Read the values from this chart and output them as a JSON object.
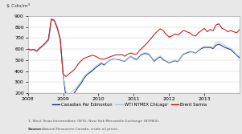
{
  "title": "$ Cdn/m³",
  "ylim": [
    200,
    900
  ],
  "yticks": [
    200,
    300,
    400,
    500,
    600,
    700,
    800,
    900
  ],
  "x_labels": [
    "2008",
    "2009",
    "2010",
    "2011",
    "2012",
    "2013"
  ],
  "legend": [
    "Canadian Par Edmonton",
    "WTI NYMEX Chicago¹",
    "Brent Sarnia"
  ],
  "line_colors": [
    "#1a2e6e",
    "#a8cce0",
    "#cc1111"
  ],
  "footnote1": "1. West Texas Intermediate (WTI); New York Mercantile Exchange (NYMEX).",
  "footnote2": "Source: Natural Resources Canada, crude oil prices.",
  "background_color": "#e8e8e8",
  "plot_bg": "#ffffff",
  "canadian_par": [
    600,
    590,
    595,
    580,
    605,
    625,
    650,
    680,
    870,
    855,
    790,
    690,
    365,
    155,
    150,
    175,
    210,
    250,
    285,
    330,
    365,
    385,
    405,
    430,
    450,
    470,
    455,
    480,
    500,
    510,
    510,
    505,
    495,
    490,
    515,
    535,
    515,
    505,
    535,
    555,
    560,
    555,
    525,
    490,
    515,
    530,
    505,
    490,
    475,
    485,
    495,
    485,
    525,
    555,
    565,
    575,
    575,
    565,
    585,
    605,
    615,
    615,
    615,
    605,
    635,
    645,
    630,
    615,
    605,
    595,
    570,
    545,
    520
  ],
  "wti_nymex": [
    598,
    588,
    592,
    575,
    602,
    622,
    648,
    678,
    872,
    858,
    793,
    693,
    368,
    210,
    195,
    215,
    235,
    268,
    302,
    345,
    375,
    398,
    418,
    442,
    462,
    478,
    462,
    482,
    502,
    512,
    512,
    508,
    498,
    492,
    518,
    538,
    520,
    510,
    540,
    562,
    568,
    562,
    530,
    498,
    522,
    538,
    512,
    495,
    480,
    490,
    500,
    490,
    530,
    560,
    570,
    580,
    578,
    568,
    590,
    612,
    625,
    625,
    625,
    615,
    660,
    668,
    648,
    635,
    618,
    605,
    580,
    552,
    530
  ],
  "brent_sarnia": [
    602,
    592,
    598,
    582,
    610,
    632,
    660,
    690,
    875,
    862,
    796,
    696,
    372,
    350,
    375,
    395,
    420,
    460,
    490,
    515,
    525,
    535,
    545,
    535,
    520,
    510,
    510,
    520,
    530,
    540,
    548,
    548,
    550,
    535,
    555,
    565,
    555,
    555,
    588,
    612,
    640,
    670,
    700,
    735,
    760,
    785,
    770,
    735,
    710,
    720,
    738,
    728,
    748,
    770,
    758,
    748,
    728,
    718,
    748,
    768,
    788,
    758,
    778,
    768,
    820,
    830,
    788,
    778,
    758,
    768,
    758,
    748,
    778
  ],
  "n_points": 73
}
